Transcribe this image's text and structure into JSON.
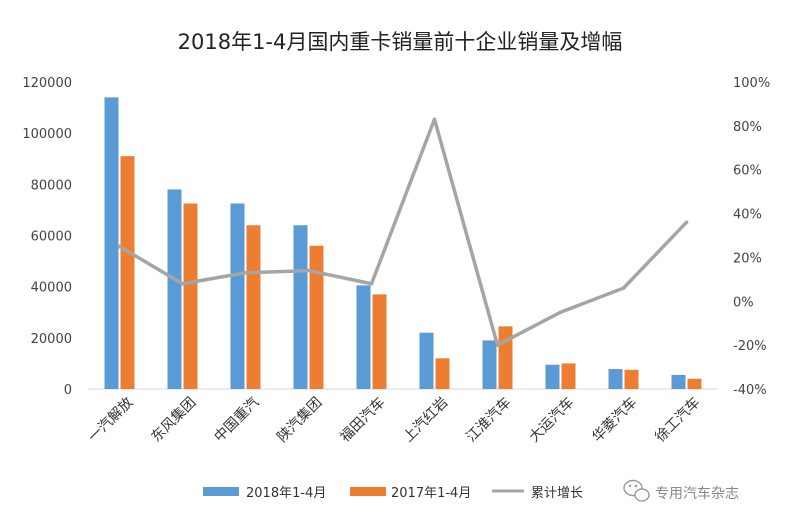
{
  "chart_data": {
    "type": "bar",
    "title": "2018年1-4月国内重卡销量前十企业销量及增幅",
    "categories": [
      "一汽解放",
      "东风集团",
      "中国重汽",
      "陕汽集团",
      "福田汽车",
      "上汽红岩",
      "江淮汽车",
      "大运汽车",
      "华菱汽车",
      "徐工汽车"
    ],
    "series": [
      {
        "name": "2018年1-4月",
        "type": "bar",
        "axis": "left",
        "color": "#5b9bd5",
        "values": [
          114000,
          78000,
          72500,
          64000,
          40500,
          22000,
          19000,
          9500,
          7800,
          5500
        ]
      },
      {
        "name": "2017年1-4月",
        "type": "bar",
        "axis": "left",
        "color": "#ed7d31",
        "values": [
          91000,
          72500,
          64000,
          56000,
          37000,
          12000,
          24500,
          10000,
          7500,
          4000
        ]
      },
      {
        "name": "累计增长",
        "type": "line",
        "axis": "right",
        "color": "#a5a5a5",
        "values": [
          0.25,
          0.08,
          0.13,
          0.14,
          0.08,
          0.83,
          -0.2,
          -0.05,
          0.06,
          0.36
        ]
      }
    ],
    "y_left": {
      "min": 0,
      "max": 120000,
      "step": 20000,
      "ticks": [
        "0",
        "20000",
        "40000",
        "60000",
        "80000",
        "100000",
        "120000"
      ]
    },
    "y_right": {
      "min": -0.4,
      "max": 1.0,
      "step": 0.2,
      "ticks": [
        "-40%",
        "-20%",
        "0%",
        "20%",
        "40%",
        "60%",
        "80%",
        "100%"
      ]
    },
    "grid": false,
    "legend": "bottom"
  },
  "watermark": "专用汽车杂志"
}
